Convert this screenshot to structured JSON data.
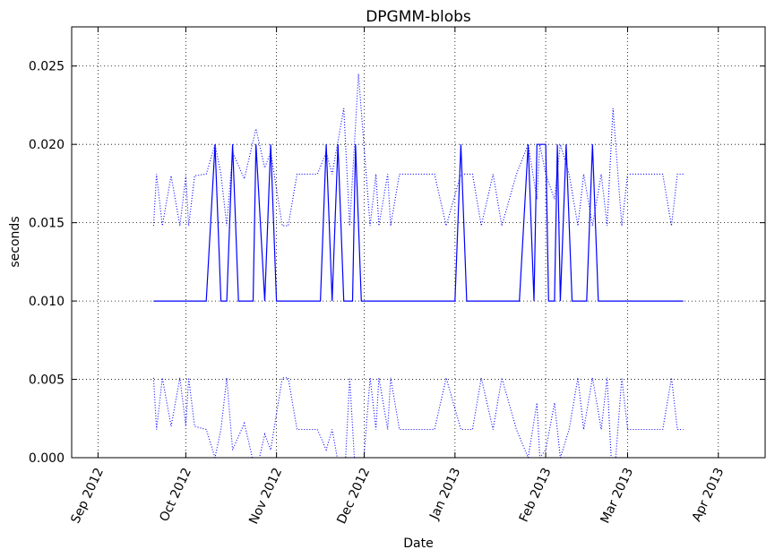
{
  "chart_data": {
    "type": "line",
    "title": "DPGMM-blobs",
    "xlabel": "Date",
    "ylabel": "seconds",
    "xlim": [
      "2012-08-23",
      "2013-04-17"
    ],
    "ylim": [
      0,
      0.0275
    ],
    "yticks": [
      0.0,
      0.005,
      0.01,
      0.015,
      0.02,
      0.025
    ],
    "ytick_labels": [
      "0.000",
      "0.005",
      "0.010",
      "0.015",
      "0.020",
      "0.025"
    ],
    "xticks": [
      "2012-09-01",
      "2012-10-01",
      "2012-11-01",
      "2012-12-01",
      "2013-01-01",
      "2013-02-01",
      "2013-03-01",
      "2013-04-01"
    ],
    "xtick_labels": [
      "Sep 2012",
      "Oct 2012",
      "Nov 2012",
      "Dec 2012",
      "Jan 2013",
      "Feb 2013",
      "Mar 2013",
      "Apr 2013"
    ],
    "grid": true,
    "color": "#0000ff",
    "series": [
      {
        "style": "solid",
        "points": [
          [
            "2012-09-20",
            0.01
          ],
          [
            "2012-10-08",
            0.01
          ],
          [
            "2012-10-11",
            0.02
          ],
          [
            "2012-10-13",
            0.01
          ],
          [
            "2012-10-15",
            0.01
          ],
          [
            "2012-10-17",
            0.02
          ],
          [
            "2012-10-19",
            0.01
          ],
          [
            "2012-10-24",
            0.01
          ],
          [
            "2012-10-25",
            0.02
          ],
          [
            "2012-10-28",
            0.01
          ],
          [
            "2012-10-30",
            0.02
          ],
          [
            "2012-11-01",
            0.01
          ],
          [
            "2012-11-16",
            0.01
          ],
          [
            "2012-11-18",
            0.02
          ],
          [
            "2012-11-20",
            0.01
          ],
          [
            "2012-11-22",
            0.02
          ],
          [
            "2012-11-24",
            0.01
          ],
          [
            "2012-11-27",
            0.01
          ],
          [
            "2012-11-28",
            0.02
          ],
          [
            "2012-11-30",
            0.01
          ],
          [
            "2013-01-01",
            0.01
          ],
          [
            "2013-01-03",
            0.02
          ],
          [
            "2013-01-05",
            0.01
          ],
          [
            "2013-01-23",
            0.01
          ],
          [
            "2013-01-26",
            0.02
          ],
          [
            "2013-01-28",
            0.01
          ],
          [
            "2013-01-29",
            0.02
          ],
          [
            "2013-02-01",
            0.02
          ],
          [
            "2013-02-02",
            0.01
          ],
          [
            "2013-02-04",
            0.01
          ],
          [
            "2013-02-05",
            0.02
          ],
          [
            "2013-02-06",
            0.01
          ],
          [
            "2013-02-08",
            0.02
          ],
          [
            "2013-02-10",
            0.01
          ],
          [
            "2013-02-15",
            0.01
          ],
          [
            "2013-02-17",
            0.02
          ],
          [
            "2013-02-19",
            0.01
          ],
          [
            "2013-03-20",
            0.01
          ]
        ]
      },
      {
        "style": "dotted",
        "points": [
          [
            "2012-09-20",
            0.0148
          ],
          [
            "2012-09-21",
            0.0181
          ],
          [
            "2012-09-23",
            0.0148
          ],
          [
            "2012-09-26",
            0.018
          ],
          [
            "2012-09-29",
            0.0148
          ],
          [
            "2012-10-01",
            0.018
          ],
          [
            "2012-10-02",
            0.0148
          ],
          [
            "2012-10-04",
            0.018
          ],
          [
            "2012-10-08",
            0.0181
          ],
          [
            "2012-10-11",
            0.02
          ],
          [
            "2012-10-13",
            0.0181
          ],
          [
            "2012-10-15",
            0.0148
          ],
          [
            "2012-10-17",
            0.0195
          ],
          [
            "2012-10-21",
            0.0178
          ],
          [
            "2012-10-25",
            0.021
          ],
          [
            "2012-10-28",
            0.0185
          ],
          [
            "2012-10-30",
            0.0195
          ],
          [
            "2012-11-03",
            0.0148
          ],
          [
            "2012-11-05",
            0.0148
          ],
          [
            "2012-11-08",
            0.0181
          ],
          [
            "2012-11-15",
            0.0181
          ],
          [
            "2012-11-18",
            0.0195
          ],
          [
            "2012-11-20",
            0.0181
          ],
          [
            "2012-11-24",
            0.0223
          ],
          [
            "2012-11-26",
            0.0148
          ],
          [
            "2012-11-29",
            0.0245
          ],
          [
            "2012-12-03",
            0.0148
          ],
          [
            "2012-12-05",
            0.0181
          ],
          [
            "2012-12-06",
            0.0148
          ],
          [
            "2012-12-09",
            0.0181
          ],
          [
            "2012-12-10",
            0.0148
          ],
          [
            "2012-12-13",
            0.0181
          ],
          [
            "2012-12-25",
            0.0181
          ],
          [
            "2012-12-29",
            0.0148
          ],
          [
            "2013-01-03",
            0.0181
          ],
          [
            "2013-01-07",
            0.0181
          ],
          [
            "2013-01-10",
            0.0148
          ],
          [
            "2013-01-14",
            0.0181
          ],
          [
            "2013-01-17",
            0.0148
          ],
          [
            "2013-01-22",
            0.0181
          ],
          [
            "2013-01-26",
            0.02
          ],
          [
            "2013-01-29",
            0.0165
          ],
          [
            "2013-01-30",
            0.02
          ],
          [
            "2013-02-01",
            0.0181
          ],
          [
            "2013-02-04",
            0.0165
          ],
          [
            "2013-02-06",
            0.02
          ],
          [
            "2013-02-09",
            0.0181
          ],
          [
            "2013-02-12",
            0.0148
          ],
          [
            "2013-02-14",
            0.0181
          ],
          [
            "2013-02-17",
            0.0148
          ],
          [
            "2013-02-20",
            0.0181
          ],
          [
            "2013-02-22",
            0.0148
          ],
          [
            "2013-02-24",
            0.0223
          ],
          [
            "2013-02-27",
            0.0148
          ],
          [
            "2013-03-01",
            0.0181
          ],
          [
            "2013-03-13",
            0.0181
          ],
          [
            "2013-03-16",
            0.0148
          ],
          [
            "2013-03-18",
            0.0181
          ],
          [
            "2013-03-20",
            0.0181
          ]
        ]
      },
      {
        "style": "dotted",
        "points": [
          [
            "2012-09-20",
            0.0051
          ],
          [
            "2012-09-21",
            0.0018
          ],
          [
            "2012-09-23",
            0.0051
          ],
          [
            "2012-09-26",
            0.002
          ],
          [
            "2012-09-29",
            0.0051
          ],
          [
            "2012-10-01",
            0.002
          ],
          [
            "2012-10-02",
            0.0051
          ],
          [
            "2012-10-04",
            0.002
          ],
          [
            "2012-10-08",
            0.0018
          ],
          [
            "2012-10-11",
            0.0
          ],
          [
            "2012-10-13",
            0.0018
          ],
          [
            "2012-10-15",
            0.0051
          ],
          [
            "2012-10-17",
            0.0005
          ],
          [
            "2012-10-21",
            0.0022
          ],
          [
            "2012-10-25",
            -0.001
          ],
          [
            "2012-10-28",
            0.0015
          ],
          [
            "2012-10-30",
            0.0005
          ],
          [
            "2012-11-03",
            0.0051
          ],
          [
            "2012-11-05",
            0.0051
          ],
          [
            "2012-11-08",
            0.0018
          ],
          [
            "2012-11-15",
            0.0018
          ],
          [
            "2012-11-18",
            0.0005
          ],
          [
            "2012-11-20",
            0.0018
          ],
          [
            "2012-11-24",
            -0.0023
          ],
          [
            "2012-11-26",
            0.0051
          ],
          [
            "2012-11-29",
            -0.0045
          ],
          [
            "2012-12-03",
            0.0051
          ],
          [
            "2012-12-05",
            0.0018
          ],
          [
            "2012-12-06",
            0.0051
          ],
          [
            "2012-12-09",
            0.0018
          ],
          [
            "2012-12-10",
            0.0051
          ],
          [
            "2012-12-13",
            0.0018
          ],
          [
            "2012-12-25",
            0.0018
          ],
          [
            "2012-12-29",
            0.0051
          ],
          [
            "2013-01-03",
            0.0018
          ],
          [
            "2013-01-07",
            0.0018
          ],
          [
            "2013-01-10",
            0.0051
          ],
          [
            "2013-01-14",
            0.0018
          ],
          [
            "2013-01-17",
            0.0051
          ],
          [
            "2013-01-22",
            0.0018
          ],
          [
            "2013-01-26",
            0.0
          ],
          [
            "2013-01-29",
            0.0035
          ],
          [
            "2013-01-30",
            0.0
          ],
          [
            "2013-02-01",
            0.0005
          ],
          [
            "2013-02-04",
            0.0035
          ],
          [
            "2013-02-06",
            0.0
          ],
          [
            "2013-02-09",
            0.0018
          ],
          [
            "2013-02-12",
            0.0051
          ],
          [
            "2013-02-14",
            0.0018
          ],
          [
            "2013-02-17",
            0.0051
          ],
          [
            "2013-02-20",
            0.0018
          ],
          [
            "2013-02-22",
            0.0051
          ],
          [
            "2013-02-24",
            -0.0023
          ],
          [
            "2013-02-27",
            0.0051
          ],
          [
            "2013-03-01",
            0.0018
          ],
          [
            "2013-03-13",
            0.0018
          ],
          [
            "2013-03-16",
            0.0051
          ],
          [
            "2013-03-18",
            0.0018
          ],
          [
            "2013-03-20",
            0.0018
          ]
        ]
      }
    ]
  }
}
